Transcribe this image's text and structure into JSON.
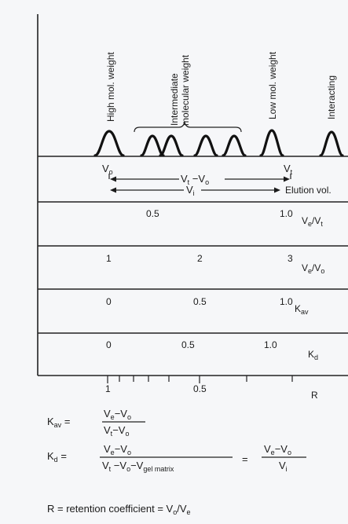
{
  "peak_groups": {
    "high": "High mol. weight",
    "intermediate_line1": "Intermediate",
    "intermediate_line2": "molecular weight",
    "low": "Low mol. weight",
    "interacting": "Interacting"
  },
  "elution": {
    "vo": "V",
    "vo_sub": "o",
    "vt": "V",
    "vt_sub": "t",
    "diff_a": "V",
    "diff_a_sub": "t",
    "diff_minus": " −V",
    "diff_b_sub": "o",
    "vi": "V",
    "vi_sub": "i",
    "label": "Elution vol."
  },
  "scales": [
    {
      "label": "V",
      "label_sub": "e",
      "label_tail": "/V",
      "label_tail_sub": "t",
      "ticks": [
        "0.5",
        "1.0"
      ]
    },
    {
      "label": "V",
      "label_sub": "e",
      "label_tail": "/V",
      "label_tail_sub": "o",
      "ticks": [
        "1",
        "2",
        "3"
      ]
    },
    {
      "label": "K",
      "label_sub": "av",
      "label_tail": "",
      "label_tail_sub": "",
      "ticks": [
        "0",
        "0.5",
        "1.0"
      ]
    },
    {
      "label": "K",
      "label_sub": "d",
      "label_tail": "",
      "label_tail_sub": "",
      "ticks": [
        "0",
        "0.5",
        "1.0"
      ]
    }
  ],
  "r_scale": {
    "label": "R",
    "ticks": [
      "1",
      "0.5"
    ]
  },
  "formulas": {
    "kav_lhs": "K",
    "kav_lhs_sub": "av",
    "equals": "=",
    "kav_num": "V",
    "kav_num_sub": "e",
    "kav_num_tail": "−V",
    "kav_num_tail_sub": "o",
    "kav_den": "V",
    "kav_den_sub": "t",
    "kav_den_tail": "−V",
    "kav_den_tail_sub": "o",
    "kd_lhs": "K",
    "kd_lhs_sub": "d",
    "kd_num": "V",
    "kd_num_sub": "e",
    "kd_num_tail": "−V",
    "kd_num_tail_sub": "o",
    "kd_den_a": "V",
    "kd_den_a_sub": "t",
    "kd_den_b": " −V",
    "kd_den_b_sub": "o",
    "kd_den_c": "−V",
    "kd_den_c_sub": "gel matrix",
    "kd_rhs_num": "V",
    "kd_rhs_num_sub": "e",
    "kd_rhs_num_tail": "−V",
    "kd_rhs_num_tail_sub": "o",
    "kd_rhs_den": "V",
    "kd_rhs_den_sub": "i",
    "r_def": "R = retention coefficient = V",
    "r_def_sub1": "o",
    "r_def_tail": "/V",
    "r_def_sub2": "e"
  }
}
